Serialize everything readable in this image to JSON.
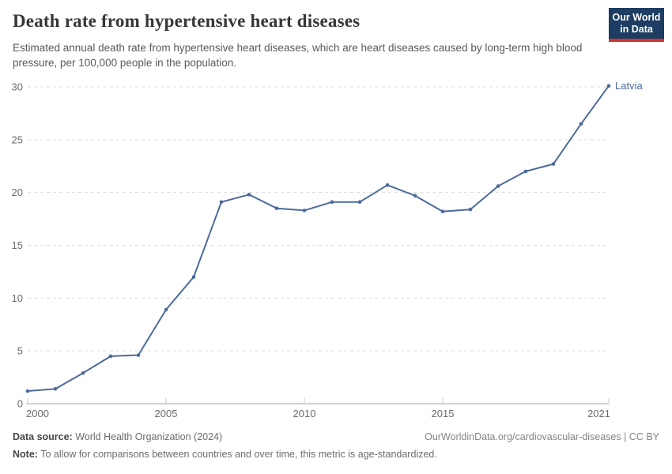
{
  "header": {
    "title": "Death rate from hypertensive heart diseases",
    "subtitle": "Estimated annual death rate from hypertensive heart diseases, which are heart diseases caused by long-term high blood pressure, per 100,000 people in the population.",
    "logo": {
      "line1": "Our World",
      "line2": "in Data",
      "bg_color": "#1d3d63",
      "accent_color": "#d0352f"
    }
  },
  "chart_data": {
    "type": "line",
    "title": "Death rate from hypertensive heart diseases",
    "xlabel": "",
    "ylabel": "",
    "xlim": [
      2000,
      2021
    ],
    "ylim": [
      0,
      30
    ],
    "x_ticks": [
      2000,
      2005,
      2010,
      2015,
      2021
    ],
    "y_ticks": [
      0,
      5,
      10,
      15,
      20,
      25,
      30
    ],
    "grid": "horizontal-dashed",
    "legend_position": "end-of-line-label",
    "x": [
      2000,
      2001,
      2002,
      2003,
      2004,
      2005,
      2006,
      2007,
      2008,
      2009,
      2010,
      2011,
      2012,
      2013,
      2014,
      2015,
      2016,
      2017,
      2018,
      2019,
      2020,
      2021
    ],
    "series": [
      {
        "name": "Latvia",
        "color": "#4C6A9C",
        "values": [
          1.2,
          1.4,
          2.9,
          4.5,
          4.6,
          8.9,
          12.0,
          19.1,
          19.8,
          18.5,
          18.3,
          19.1,
          19.1,
          20.7,
          19.7,
          18.2,
          18.4,
          20.6,
          22.0,
          22.7,
          26.5,
          30.1
        ]
      }
    ],
    "colors": {
      "gridline": "#dcdcdc",
      "axis_spine": "#a6a6a6",
      "tick_mark": "#c9c9c9",
      "tick_label": "#6b6b6b"
    }
  },
  "footer": {
    "datasource_label": "Data source:",
    "datasource_value": " World Health Organization (2024)",
    "link": "OurWorldinData.org/cardiovascular-diseases | CC BY",
    "note_label": "Note:",
    "note_value": " To allow for comparisons between countries and over time, this metric is age-standardized."
  }
}
